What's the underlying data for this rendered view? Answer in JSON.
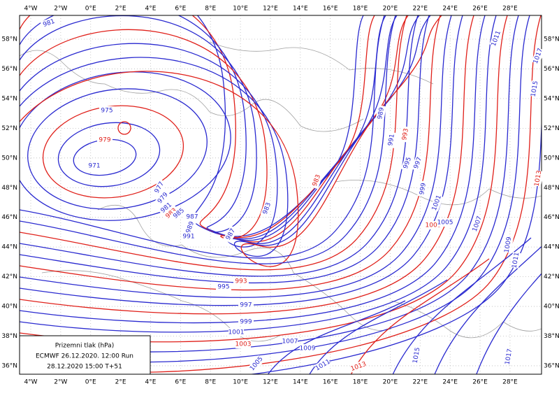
{
  "map": {
    "lon_labels": [
      "4°W",
      "2°W",
      "0°E",
      "2°E",
      "4°E",
      "6°E",
      "8°E",
      "10°E",
      "12°E",
      "14°E",
      "16°E",
      "18°E",
      "20°E",
      "22°E",
      "24°E",
      "26°E",
      "28°E"
    ],
    "lat_labels": [
      "58°N",
      "56°N",
      "54°N",
      "52°N",
      "50°N",
      "48°N",
      "46°N",
      "44°N",
      "42°N",
      "40°N",
      "38°N",
      "36°N"
    ],
    "isobar_labels": [
      {
        "text": "981",
        "color": "#2a2ad0"
      },
      {
        "text": "975",
        "color": "#2a2ad0"
      },
      {
        "text": "979",
        "color": "#e0201a"
      },
      {
        "text": "971",
        "color": "#2a2ad0"
      },
      {
        "text": "977",
        "color": "#2a2ad0"
      },
      {
        "text": "979",
        "color": "#2a2ad0"
      },
      {
        "text": "981",
        "color": "#2a2ad0"
      },
      {
        "text": "983",
        "color": "#e0201a"
      },
      {
        "text": "985",
        "color": "#2a2ad0"
      },
      {
        "text": "987",
        "color": "#2a2ad0"
      },
      {
        "text": "989",
        "color": "#2a2ad0"
      },
      {
        "text": "991",
        "color": "#2a2ad0"
      },
      {
        "text": "987",
        "color": "#2a2ad0"
      },
      {
        "text": "983",
        "color": "#2a2ad0"
      },
      {
        "text": "983",
        "color": "#e0201a"
      },
      {
        "text": "989",
        "color": "#2a2ad0"
      },
      {
        "text": "993",
        "color": "#e0201a"
      },
      {
        "text": "991",
        "color": "#2a2ad0"
      },
      {
        "text": "995",
        "color": "#2a2ad0"
      },
      {
        "text": "997",
        "color": "#2a2ad0"
      },
      {
        "text": "999",
        "color": "#2a2ad0"
      },
      {
        "text": "993",
        "color": "#e0201a"
      },
      {
        "text": "995",
        "color": "#2a2ad0"
      },
      {
        "text": "997",
        "color": "#2a2ad0"
      },
      {
        "text": "999",
        "color": "#2a2ad0"
      },
      {
        "text": "1001",
        "color": "#2a2ad0"
      },
      {
        "text": "1003",
        "color": "#e0201a"
      },
      {
        "text": "1005",
        "color": "#2a2ad0"
      },
      {
        "text": "1007",
        "color": "#2a2ad0"
      },
      {
        "text": "1009",
        "color": "#2a2ad0"
      },
      {
        "text": "1011",
        "color": "#2a2ad0"
      },
      {
        "text": "1013",
        "color": "#e0201a"
      },
      {
        "text": "1015",
        "color": "#2a2ad0"
      },
      {
        "text": "1001",
        "color": "#2a2ad0"
      },
      {
        "text": "1003",
        "color": "#e0201a"
      },
      {
        "text": "1005",
        "color": "#2a2ad0"
      },
      {
        "text": "1007",
        "color": "#2a2ad0"
      },
      {
        "text": "1009",
        "color": "#2a2ad0"
      },
      {
        "text": "1011",
        "color": "#2a2ad0"
      },
      {
        "text": "1011",
        "color": "#2a2ad0"
      },
      {
        "text": "1013",
        "color": "#e0201a"
      },
      {
        "text": "1015",
        "color": "#2a2ad0"
      },
      {
        "text": "1017",
        "color": "#2a2ad0"
      },
      {
        "text": "1017",
        "color": "#2a2ad0"
      }
    ]
  },
  "legend": {
    "lines": [
      "Prizemni tlak (hPa)",
      "ECMWF 26.12.2020.  12:00 Run",
      "28.12.2020 15:00  T+51"
    ]
  }
}
